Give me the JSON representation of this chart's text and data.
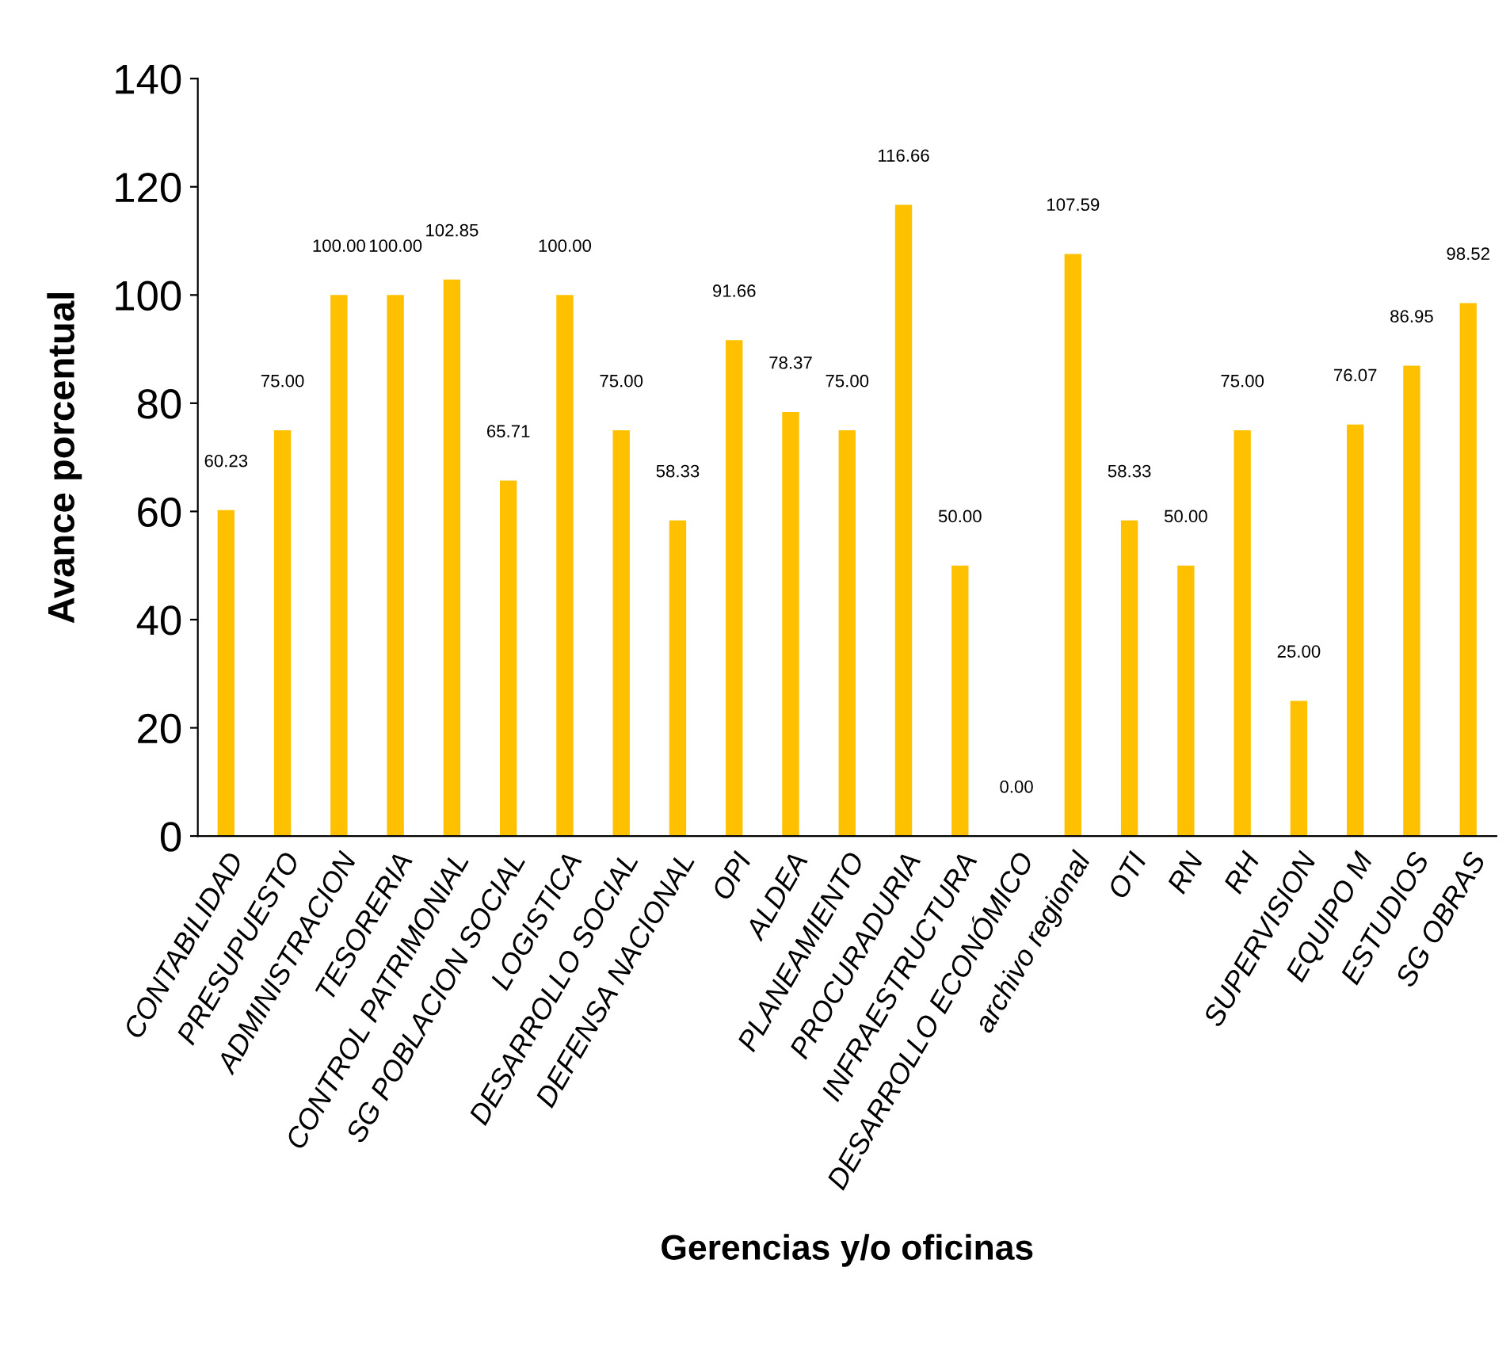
{
  "chart_data": {
    "type": "bar",
    "xlabel": "Gerencias y/o oficinas",
    "ylabel": "Avance porcentual",
    "categories": [
      "CONTABILIDAD",
      "PRESUPUESTO",
      "ADMINISTRACION",
      "TESORERIA",
      "CONTROL PATRIMONIAL",
      "SG POBLACION SOCIAL",
      "LOGISTICA",
      "DESARROLLO SOCIAL",
      "DEFENSA NACIONAL",
      "OPI",
      "ALDEA",
      "PLANEAMIENTO",
      "PROCURADURIA",
      "INFRAESTRUCTURA",
      "DESARROLLO ECONÓMICO",
      "archivo regional",
      "OTI",
      "RN",
      "RH",
      "SUPERVISION",
      "EQUIPO M",
      "ESTUDIOS",
      "SG OBRAS"
    ],
    "values": [
      60.23,
      75.0,
      100.0,
      100.0,
      102.85,
      65.71,
      100.0,
      75.0,
      58.33,
      91.66,
      78.37,
      75.0,
      116.66,
      50.0,
      0.0,
      107.59,
      58.33,
      50.0,
      75.0,
      25.0,
      76.07,
      86.95,
      98.52
    ],
    "value_labels": [
      "60.23",
      "75.00",
      "100.00",
      "100.00",
      "102.85",
      "65.71",
      "100.00",
      "75.00",
      "58.33",
      "91.66",
      "78.37",
      "75.00",
      "116.66",
      "50.00",
      "0.00",
      "107.59",
      "58.33",
      "50.00",
      "75.00",
      "25.00",
      "76.07",
      "86.95",
      "98.52"
    ],
    "color": "#ffc000",
    "ylim": [
      0,
      140
    ],
    "yticks": [
      0,
      20,
      40,
      60,
      80,
      100,
      120,
      140
    ],
    "grid": false,
    "legend": false
  }
}
